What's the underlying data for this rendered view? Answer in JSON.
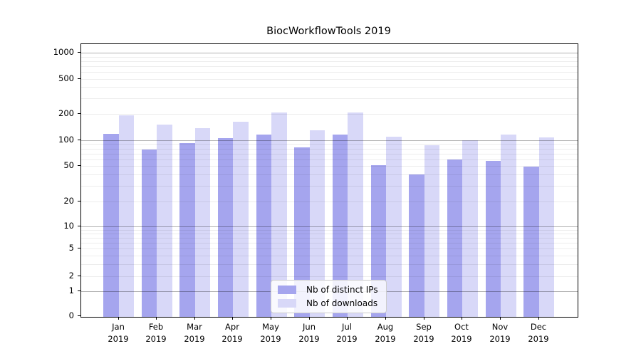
{
  "title": "BiocWorkflowTools 2019",
  "chart_data": {
    "type": "bar",
    "title": "BiocWorkflowTools 2019",
    "xlabel": "",
    "ylabel": "",
    "scale": "log-like (linear segment between 0 and 1)",
    "grid": true,
    "legend_position": "lower center inside plot",
    "categories": [
      "Jan",
      "Feb",
      "Mar",
      "Apr",
      "May",
      "Jun",
      "Jul",
      "Aug",
      "Sep",
      "Oct",
      "Nov",
      "Dec"
    ],
    "category_year": "2019",
    "yticks": [
      0,
      1,
      2,
      5,
      10,
      20,
      50,
      100,
      200,
      500,
      1000
    ],
    "ylim": [
      0,
      1300
    ],
    "series": [
      {
        "name": "Nb of distinct IPs",
        "color": "#a5a5ee",
        "values": [
          118,
          78,
          93,
          105,
          116,
          83,
          117,
          51,
          40,
          60,
          57,
          49
        ]
      },
      {
        "name": "Nb of downloads",
        "color": "#d8d8f8",
        "values": [
          190,
          150,
          136,
          163,
          205,
          130,
          207,
          110,
          88,
          100,
          116,
          108
        ]
      }
    ]
  },
  "colors": {
    "distinct_ips_bar": "#a5a5ee",
    "downloads_bar": "#d8d8f8",
    "major_gridline": "#aaaaaa",
    "minor_gridline": "#ececec",
    "axis": "#000000"
  }
}
